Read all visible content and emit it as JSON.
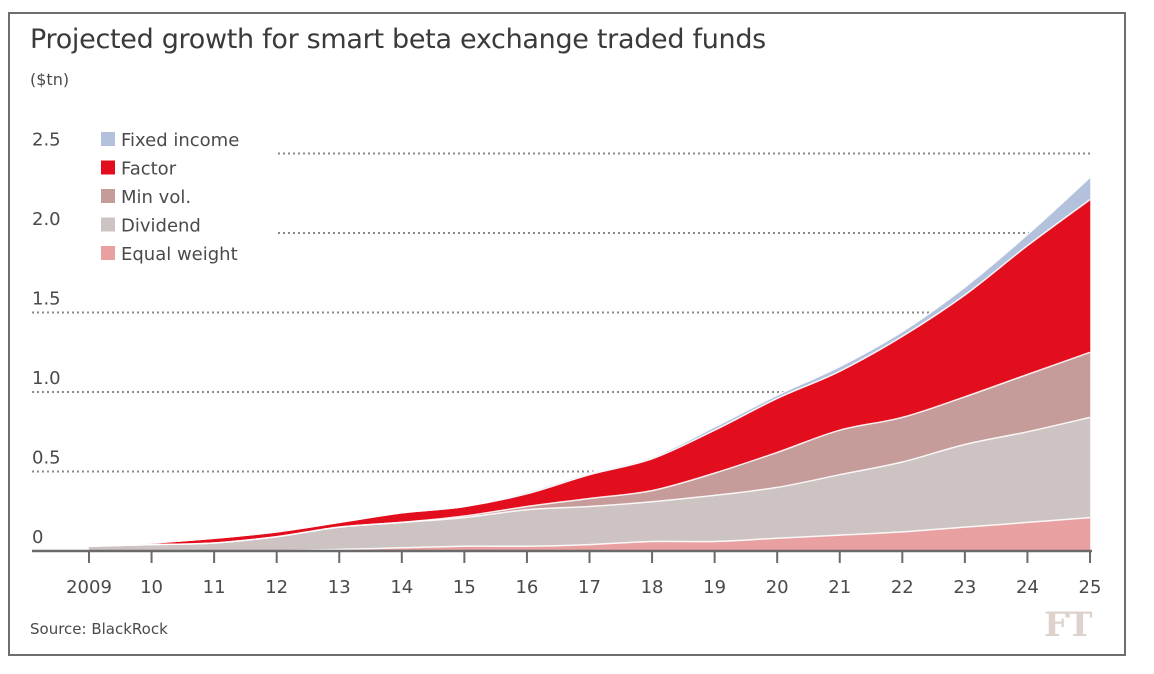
{
  "chart_data": {
    "type": "area",
    "stacked": true,
    "title": "Projected growth for smart beta exchange traded funds",
    "ylabel": "($tn)",
    "xlabel": "",
    "source": "Source: BlackRock",
    "logo": "FT",
    "x": [
      2009,
      2010,
      2011,
      2012,
      2013,
      2014,
      2015,
      2016,
      2017,
      2018,
      2019,
      2020,
      2021,
      2022,
      2023,
      2024,
      2025
    ],
    "x_tick_labels": [
      "2009",
      "10",
      "11",
      "12",
      "13",
      "14",
      "15",
      "16",
      "17",
      "18",
      "19",
      "20",
      "21",
      "22",
      "23",
      "24",
      "25"
    ],
    "y_ticks": [
      0,
      0.5,
      1.0,
      1.5,
      2.0,
      2.5
    ],
    "y_tick_labels": [
      "0",
      "0.5",
      "1.0",
      "1.5",
      "2.0",
      "2.5"
    ],
    "ylim": [
      0,
      2.5
    ],
    "grid": "horizontal-dotted",
    "legend_position": "top-left",
    "series": [
      {
        "name": "Equal weight",
        "color": "#e8a0a0",
        "values": [
          0,
          0,
          0,
          0,
          0.01,
          0.02,
          0.03,
          0.03,
          0.04,
          0.06,
          0.06,
          0.08,
          0.1,
          0.12,
          0.15,
          0.18,
          0.21
        ]
      },
      {
        "name": "Dividend",
        "color": "#cdc3c3",
        "values": [
          0.03,
          0.04,
          0.05,
          0.09,
          0.14,
          0.16,
          0.18,
          0.23,
          0.24,
          0.25,
          0.29,
          0.32,
          0.38,
          0.44,
          0.52,
          0.57,
          0.63
        ]
      },
      {
        "name": "Min vol.",
        "color": "#c59c9a",
        "values": [
          0,
          0,
          0,
          0,
          0,
          0,
          0.01,
          0.02,
          0.05,
          0.07,
          0.14,
          0.22,
          0.28,
          0.28,
          0.3,
          0.36,
          0.41
        ]
      },
      {
        "name": "Factor",
        "color": "#e20e1d",
        "values": [
          0,
          0.01,
          0.03,
          0.03,
          0.03,
          0.06,
          0.06,
          0.08,
          0.15,
          0.2,
          0.27,
          0.34,
          0.37,
          0.51,
          0.64,
          0.81,
          0.96
        ]
      },
      {
        "name": "Fixed income",
        "color": "#b3c1dd",
        "values": [
          0,
          0,
          0,
          0,
          0,
          0,
          0,
          0.01,
          0.01,
          0.01,
          0.02,
          0.02,
          0.03,
          0.03,
          0.05,
          0.07,
          0.14
        ]
      }
    ],
    "legend_order": [
      "Fixed income",
      "Factor",
      "Min vol.",
      "Dividend",
      "Equal weight"
    ]
  }
}
